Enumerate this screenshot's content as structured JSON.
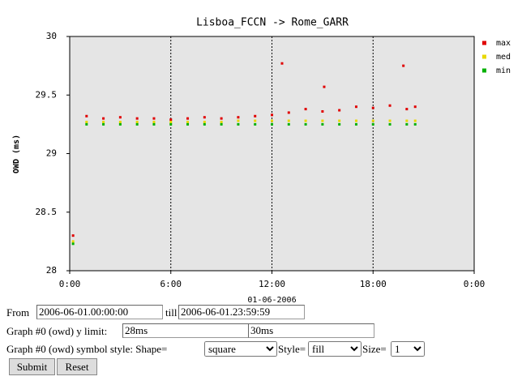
{
  "chart_data": {
    "type": "scatter",
    "title": "Lisboa_FCCN -> Rome_GARR",
    "y_label": "OWD (ms)",
    "date_label": "01-06-2006",
    "x": [
      0.2,
      1,
      2,
      3,
      4,
      5,
      6,
      7,
      8,
      9,
      10,
      11,
      12,
      12.6,
      13,
      14,
      15,
      15.1,
      16,
      17,
      18,
      19,
      19.8,
      20,
      20.5
    ],
    "series": [
      {
        "name": "max",
        "color": "#e00000",
        "values": [
          28.3,
          29.32,
          29.3,
          29.31,
          29.3,
          29.3,
          29.29,
          29.3,
          29.31,
          29.3,
          29.31,
          29.32,
          29.33,
          29.77,
          29.35,
          29.38,
          29.36,
          29.57,
          29.37,
          29.4,
          29.39,
          29.41,
          29.75,
          29.38,
          29.4
        ]
      },
      {
        "name": "med",
        "color": "#e8d800",
        "values": [
          28.25,
          29.27,
          29.27,
          29.27,
          29.27,
          29.27,
          29.27,
          29.27,
          29.27,
          29.27,
          29.28,
          29.28,
          29.28,
          null,
          29.28,
          29.28,
          29.28,
          null,
          29.28,
          29.28,
          29.28,
          29.28,
          null,
          29.28,
          29.28
        ]
      },
      {
        "name": "min",
        "color": "#00b000",
        "values": [
          28.23,
          29.25,
          29.25,
          29.25,
          29.25,
          29.25,
          29.25,
          29.25,
          29.25,
          29.25,
          29.25,
          29.25,
          29.25,
          null,
          29.25,
          29.25,
          29.25,
          null,
          29.25,
          29.25,
          29.25,
          29.25,
          null,
          29.25,
          29.25
        ]
      }
    ],
    "xlim": [
      0,
      24
    ],
    "xticks": [
      {
        "value": 0,
        "label": "0:00"
      },
      {
        "value": 6,
        "label": "6:00"
      },
      {
        "value": 12,
        "label": "12:00"
      },
      {
        "value": 18,
        "label": "18:00"
      },
      {
        "value": 24,
        "label": "0:00"
      }
    ],
    "ylim": [
      28,
      30
    ],
    "yticks": [
      28,
      28.5,
      29,
      29.5,
      30
    ],
    "xgrid": true,
    "legend": "right"
  },
  "form": {
    "from_label": "From",
    "from_value": "2006-06-01.00:00:00",
    "till_label": "till",
    "till_value": "2006-06-01.23:59:59",
    "ylimit_label": "Graph #0 (owd) y limit:",
    "ylimit_min": "28ms",
    "ylimit_max": "30ms",
    "style_label": "Graph #0 (owd) symbol style: Shape=",
    "shape": "square",
    "style_sub_label": "Style=",
    "style": "fill",
    "size_label": "Size=",
    "size": "1",
    "submit": "Submit",
    "reset": "Reset"
  }
}
